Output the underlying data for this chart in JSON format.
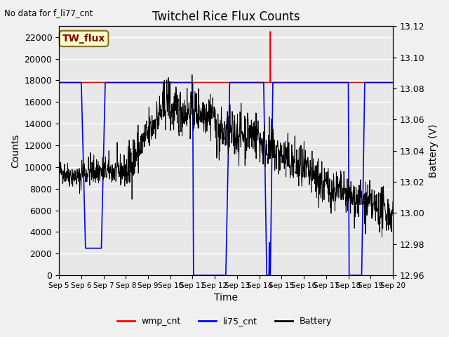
{
  "title": "Twitchel Rice Flux Counts",
  "xlabel": "Time",
  "ylabel_left": "Counts",
  "ylabel_right": "Battery (V)",
  "no_data_text": "No data for f_li77_cnt",
  "tw_flux_label": "TW_flux",
  "ylim_left": [
    0,
    23000
  ],
  "ylim_right": [
    12.96,
    13.12
  ],
  "yticks_left": [
    0,
    2000,
    4000,
    6000,
    8000,
    10000,
    12000,
    14000,
    16000,
    18000,
    20000,
    22000
  ],
  "right_ticks": [
    12.96,
    12.98,
    13.0,
    13.02,
    13.04,
    13.06,
    13.08,
    13.1,
    13.12
  ],
  "xtick_labels": [
    "Sep 5",
    "Sep 6",
    "Sep 7",
    "Sep 8",
    "Sep 9",
    "Sep 10",
    "Sep 11",
    "Sep 12",
    "Sep 13",
    "Sep 14",
    "Sep 15",
    "Sep 16",
    "Sep 17",
    "Sep 18",
    "Sep 19",
    "Sep 20"
  ],
  "bg_color": "#f0f0f0",
  "plot_bg_color": "#e8e8e8",
  "wmp_color": "red",
  "li75_color": "blue",
  "battery_color": "black",
  "seed": 42,
  "n_pts": 1200
}
